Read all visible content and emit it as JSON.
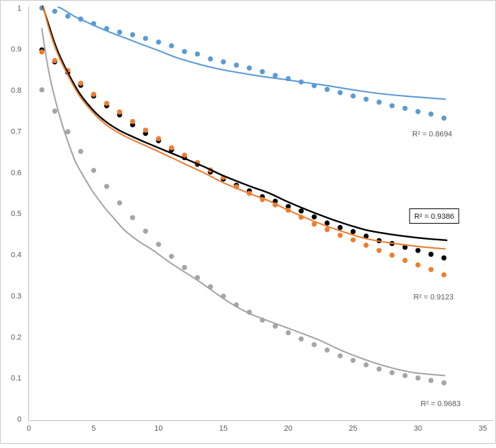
{
  "chart_data": {
    "type": "scatter",
    "title": "",
    "xlabel": "",
    "ylabel": "",
    "xlim": [
      0,
      35.5
    ],
    "ylim": [
      0,
      1
    ],
    "grid": false,
    "legend": "none",
    "x": [
      1,
      2,
      3,
      4,
      5,
      6,
      7,
      8,
      9,
      10,
      11,
      12,
      13,
      14,
      15,
      16,
      17,
      18,
      19,
      20,
      21,
      22,
      23,
      24,
      25,
      26,
      27,
      28,
      29,
      30,
      31,
      32
    ],
    "series": [
      {
        "name": "blue",
        "color": "#5B9BD5",
        "marker": "circle",
        "values": [
          1.0,
          0.992,
          0.98,
          0.973,
          0.962,
          0.95,
          0.941,
          0.935,
          0.926,
          0.917,
          0.908,
          0.894,
          0.888,
          0.876,
          0.869,
          0.861,
          0.854,
          0.845,
          0.836,
          0.828,
          0.82,
          0.811,
          0.802,
          0.794,
          0.786,
          0.778,
          0.771,
          0.762,
          0.756,
          0.748,
          0.742,
          0.732
        ],
        "trendline": [
          [
            2.25,
            1.002
          ],
          [
            2.56,
            0.998
          ],
          [
            3.5,
            0.98
          ],
          [
            4.5,
            0.965
          ],
          [
            5.5,
            0.951
          ],
          [
            6.5,
            0.938
          ],
          [
            7.5,
            0.926
          ],
          [
            8.5,
            0.914
          ],
          [
            10.1,
            0.895
          ],
          [
            11.5,
            0.878
          ],
          [
            12.8,
            0.866
          ],
          [
            14,
            0.856
          ],
          [
            15.4,
            0.847
          ],
          [
            16.7,
            0.84
          ],
          [
            18.1,
            0.833
          ],
          [
            19.5,
            0.827
          ],
          [
            20.8,
            0.821
          ],
          [
            22.8,
            0.812
          ],
          [
            24,
            0.806
          ],
          [
            25.4,
            0.799
          ],
          [
            27,
            0.792
          ],
          [
            28.9,
            0.786
          ],
          [
            30.5,
            0.782
          ],
          [
            32.1,
            0.778
          ]
        ],
        "r2": {
          "text": "R² = 0.8694",
          "x": 31.1,
          "y": 0.694,
          "boxed": false,
          "color": "#595959"
        }
      },
      {
        "name": "black",
        "color": "#000000",
        "marker": "circle",
        "values": [
          0.898,
          0.869,
          0.843,
          0.812,
          0.786,
          0.762,
          0.74,
          0.716,
          0.695,
          0.677,
          0.655,
          0.636,
          0.62,
          0.601,
          0.584,
          0.569,
          0.555,
          0.541,
          0.53,
          0.517,
          0.506,
          0.492,
          0.477,
          0.466,
          0.456,
          0.445,
          0.434,
          0.427,
          0.418,
          0.41,
          0.401,
          0.392
        ],
        "trendline": [
          [
            1.08,
            1.004
          ],
          [
            1.5,
            0.962
          ],
          [
            2.1,
            0.905
          ],
          [
            2.9,
            0.849
          ],
          [
            3.9,
            0.793
          ],
          [
            5,
            0.75
          ],
          [
            6,
            0.722
          ],
          [
            7,
            0.702
          ],
          [
            8,
            0.687
          ],
          [
            9,
            0.673
          ],
          [
            10.6,
            0.652
          ],
          [
            12,
            0.634
          ],
          [
            13.5,
            0.614
          ],
          [
            15,
            0.592
          ],
          [
            17,
            0.567
          ],
          [
            18.5,
            0.55
          ],
          [
            20,
            0.528
          ],
          [
            22,
            0.502
          ],
          [
            24,
            0.479
          ],
          [
            26,
            0.46
          ],
          [
            28,
            0.449
          ],
          [
            30,
            0.441
          ],
          [
            32.2,
            0.435
          ]
        ],
        "r2": {
          "text": "R² = 0.9386",
          "x": 31.25,
          "y": 0.494,
          "boxed": true,
          "color": "#1a1a1a"
        }
      },
      {
        "name": "orange",
        "color": "#ED7D31",
        "marker": "circle",
        "values": [
          0.893,
          0.872,
          0.848,
          0.817,
          0.79,
          0.768,
          0.747,
          0.724,
          0.703,
          0.682,
          0.66,
          0.642,
          0.624,
          0.606,
          0.588,
          0.565,
          0.549,
          0.534,
          0.521,
          0.508,
          0.491,
          0.474,
          0.461,
          0.447,
          0.436,
          0.423,
          0.41,
          0.399,
          0.386,
          0.375,
          0.364,
          0.351
        ],
        "trendline": [
          [
            1.12,
            1.004
          ],
          [
            1.5,
            0.955
          ],
          [
            2.1,
            0.898
          ],
          [
            2.9,
            0.843
          ],
          [
            3.9,
            0.787
          ],
          [
            5,
            0.744
          ],
          [
            6,
            0.715
          ],
          [
            7,
            0.695
          ],
          [
            8,
            0.679
          ],
          [
            9,
            0.665
          ],
          [
            10.6,
            0.642
          ],
          [
            12,
            0.621
          ],
          [
            13.5,
            0.599
          ],
          [
            15,
            0.575
          ],
          [
            17,
            0.549
          ],
          [
            18.5,
            0.531
          ],
          [
            20,
            0.508
          ],
          [
            22,
            0.481
          ],
          [
            24,
            0.458
          ],
          [
            26,
            0.439
          ],
          [
            28,
            0.428
          ],
          [
            30,
            0.42
          ],
          [
            32.1,
            0.414
          ]
        ],
        "r2": {
          "text": "R² = 0.9123",
          "x": 31.2,
          "y": 0.297,
          "boxed": false,
          "color": "#595959"
        }
      },
      {
        "name": "gray",
        "color": "#A5A5A5",
        "marker": "circle",
        "values": [
          0.801,
          0.749,
          0.699,
          0.651,
          0.605,
          0.566,
          0.526,
          0.49,
          0.457,
          0.425,
          0.396,
          0.369,
          0.344,
          0.322,
          0.299,
          0.278,
          0.26,
          0.241,
          0.226,
          0.21,
          0.195,
          0.181,
          0.168,
          0.154,
          0.143,
          0.132,
          0.122,
          0.113,
          0.106,
          0.1,
          0.094,
          0.088
        ],
        "trendline": [
          [
            1.0,
            0.95
          ],
          [
            1.3,
            0.888
          ],
          [
            1.62,
            0.832
          ],
          [
            2.04,
            0.776
          ],
          [
            2.54,
            0.72
          ],
          [
            3.07,
            0.67
          ],
          [
            3.61,
            0.625
          ],
          [
            4.32,
            0.585
          ],
          [
            5,
            0.55
          ],
          [
            5.83,
            0.515
          ],
          [
            6.6,
            0.487
          ],
          [
            7.43,
            0.458
          ],
          [
            8.5,
            0.432
          ],
          [
            9.56,
            0.411
          ],
          [
            10.6,
            0.387
          ],
          [
            11.7,
            0.364
          ],
          [
            12.7,
            0.344
          ],
          [
            13.5,
            0.327
          ],
          [
            15.3,
            0.287
          ],
          [
            17,
            0.257
          ],
          [
            18.8,
            0.235
          ],
          [
            20.6,
            0.214
          ],
          [
            22.4,
            0.192
          ],
          [
            24.1,
            0.167
          ],
          [
            25.9,
            0.145
          ],
          [
            27.7,
            0.127
          ],
          [
            29.5,
            0.114
          ],
          [
            31.3,
            0.108
          ],
          [
            32.05,
            0.106
          ]
        ],
        "r2": {
          "text": "R² = 0.9683",
          "x": 31.75,
          "y": 0.038,
          "boxed": false,
          "color": "#595959"
        }
      }
    ]
  },
  "axes": {
    "x_tick_labels": [
      "0",
      "5",
      "10",
      "15",
      "20",
      "25",
      "30",
      "35"
    ],
    "y_tick_labels": [
      "0",
      "0.1",
      "0.2",
      "0.3",
      "0.4",
      "0.5",
      "0.6",
      "0.7",
      "0.8",
      "0.9",
      "1"
    ],
    "axis_color": "#BFBFBF",
    "tick_label_color": "#595959"
  }
}
